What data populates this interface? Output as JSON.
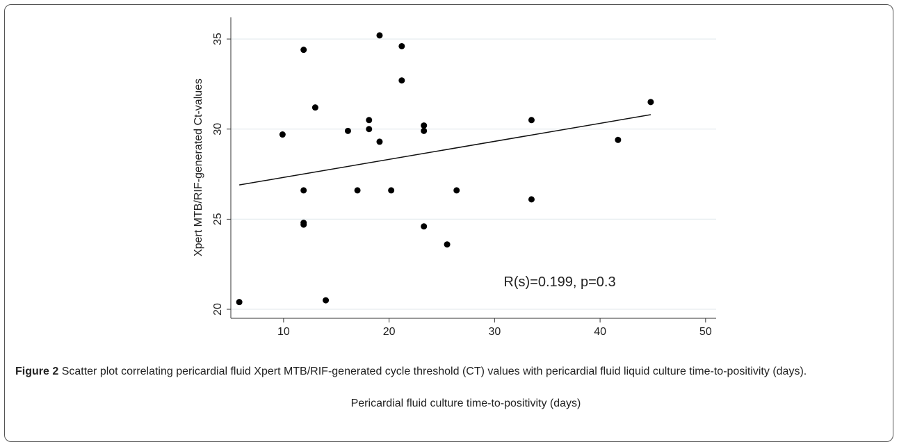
{
  "chart_data": {
    "type": "scatter",
    "x_label": "Pericardial fluid culture time-to-positivity (days)",
    "y_label": "Xpert MTB/RIF-generated Ct-values",
    "annotation": "R(s)=0.199, p=0.3",
    "x": [
      5.8,
      9.9,
      11.9,
      11.9,
      11.9,
      11.9,
      13.0,
      14.0,
      16.1,
      17.0,
      18.1,
      18.1,
      19.1,
      19.1,
      20.2,
      21.2,
      21.2,
      23.3,
      23.3,
      23.3,
      25.5,
      26.4,
      33.5,
      33.5,
      41.7,
      44.8
    ],
    "values": [
      20.4,
      29.7,
      34.4,
      26.6,
      24.8,
      24.7,
      31.2,
      20.5,
      29.9,
      26.6,
      30.5,
      30.0,
      35.2,
      29.3,
      26.6,
      34.6,
      32.7,
      30.2,
      29.9,
      24.6,
      23.6,
      26.6,
      30.5,
      26.1,
      29.4,
      31.5
    ],
    "color": "#000000",
    "fit_line": {
      "x": [
        5.8,
        44.8
      ],
      "values": [
        26.9,
        30.8
      ]
    },
    "xlim": [
      5,
      51
    ],
    "xticks": [
      10,
      20,
      30,
      40,
      50
    ],
    "ylim": [
      19.5,
      36.2
    ],
    "yticks": [
      20,
      25,
      30,
      35
    ],
    "grid": true
  },
  "caption": {
    "label": "Figure 2",
    "text": "Scatter plot correlating pericardial fluid Xpert MTB/RIF-generated cycle threshold (CT) values with pericardial fluid liquid culture time-to-positivity (days)."
  }
}
